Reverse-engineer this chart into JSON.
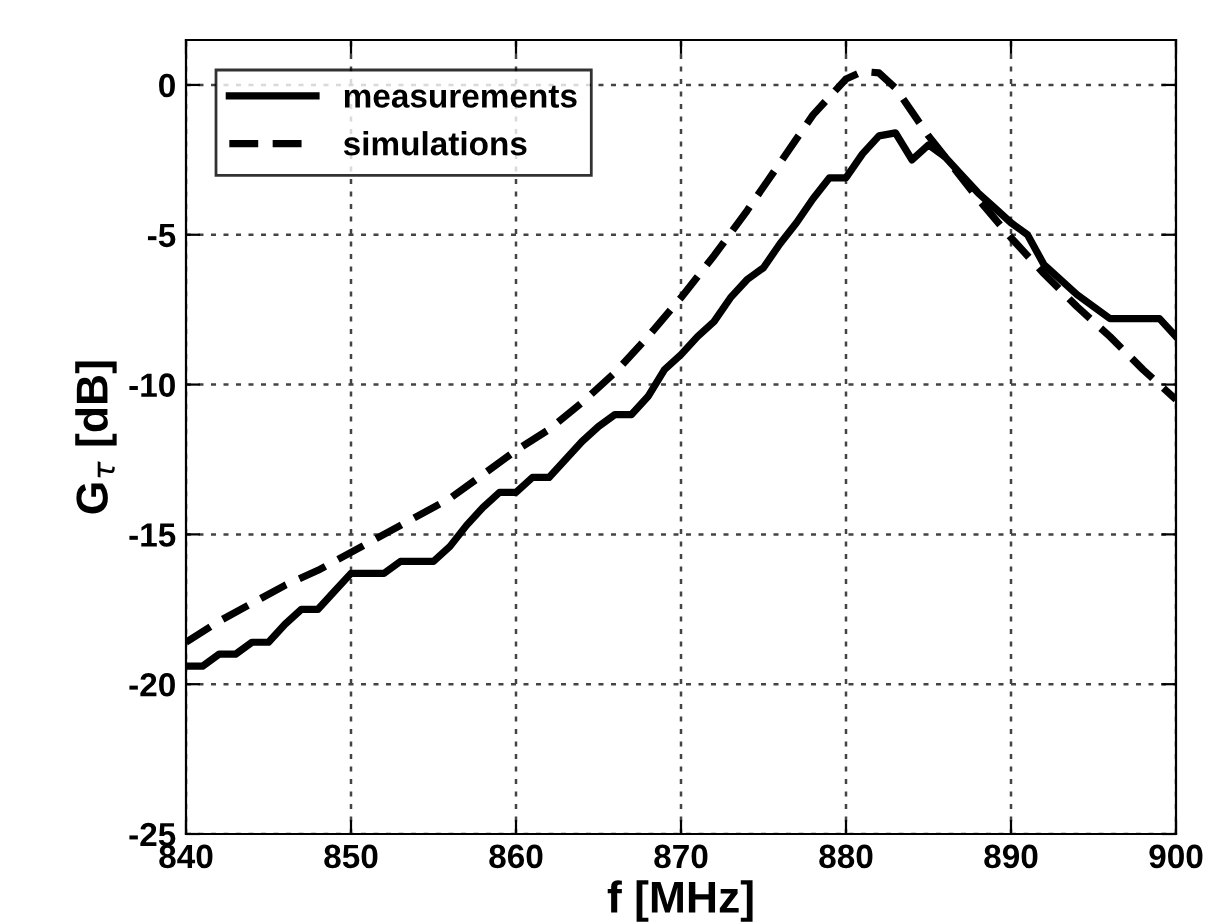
{
  "chart_data": {
    "type": "line",
    "xlabel": "f [MHz]",
    "ylabel": "G$_{τ}$ [dB]",
    "xlim": [
      840,
      900
    ],
    "xticks": [
      840,
      850,
      860,
      870,
      880,
      890,
      900
    ],
    "ylim": [
      -25,
      1.5
    ],
    "yticks": [
      -25,
      -20,
      -15,
      -10,
      -5,
      0
    ],
    "grid": true,
    "legend": "top left",
    "series": [
      {
        "name": "measurements",
        "color": "#000000",
        "line_style": "solid",
        "x": [
          840,
          841,
          842,
          843,
          844,
          845,
          846,
          847,
          848,
          849,
          850,
          851,
          852,
          853,
          854,
          855,
          856,
          857,
          858,
          859,
          860,
          861,
          862,
          863,
          864,
          865,
          866,
          867,
          868,
          869,
          870,
          871,
          872,
          873,
          874,
          875,
          876,
          877,
          878,
          879,
          880,
          881,
          882,
          883,
          884,
          885,
          886,
          887,
          888,
          889,
          890,
          891,
          892,
          893,
          894,
          895,
          896,
          897,
          898,
          899,
          900
        ],
        "values": [
          -19.4,
          -19.4,
          -19.0,
          -19.0,
          -18.6,
          -18.6,
          -18.0,
          -17.5,
          -17.5,
          -16.9,
          -16.3,
          -16.3,
          -16.3,
          -15.9,
          -15.9,
          -15.9,
          -15.4,
          -14.7,
          -14.1,
          -13.6,
          -13.6,
          -13.1,
          -13.1,
          -12.5,
          -11.9,
          -11.4,
          -11.0,
          -11.0,
          -10.4,
          -9.5,
          -9.0,
          -8.4,
          -7.9,
          -7.1,
          -6.5,
          -6.1,
          -5.3,
          -4.6,
          -3.8,
          -3.1,
          -3.1,
          -2.3,
          -1.7,
          -1.6,
          -2.5,
          -2.0,
          -2.4,
          -3.0,
          -3.6,
          -4.1,
          -4.6,
          -5.0,
          -6.0,
          -6.5,
          -7.0,
          -7.4,
          -7.8,
          -7.8,
          -7.8,
          -7.8,
          -8.4
        ]
      },
      {
        "name": "simulations",
        "color": "#000000",
        "line_style": "dashed",
        "x": [
          840,
          842,
          844,
          846,
          848,
          850,
          852,
          854,
          856,
          858,
          860,
          862,
          864,
          866,
          868,
          870,
          872,
          874,
          876,
          878,
          880,
          881,
          882,
          883,
          884,
          885,
          886,
          888,
          890,
          892,
          894,
          896,
          898,
          900
        ],
        "values": [
          -18.6,
          -17.9,
          -17.3,
          -16.7,
          -16.2,
          -15.6,
          -15.0,
          -14.4,
          -13.8,
          -13.0,
          -12.2,
          -11.5,
          -10.6,
          -9.6,
          -8.4,
          -7.1,
          -5.7,
          -4.2,
          -2.6,
          -1.0,
          0.2,
          0.45,
          0.4,
          -0.1,
          -0.9,
          -1.7,
          -2.4,
          -3.8,
          -5.1,
          -6.3,
          -7.4,
          -8.4,
          -9.5,
          -10.5
        ]
      }
    ]
  }
}
